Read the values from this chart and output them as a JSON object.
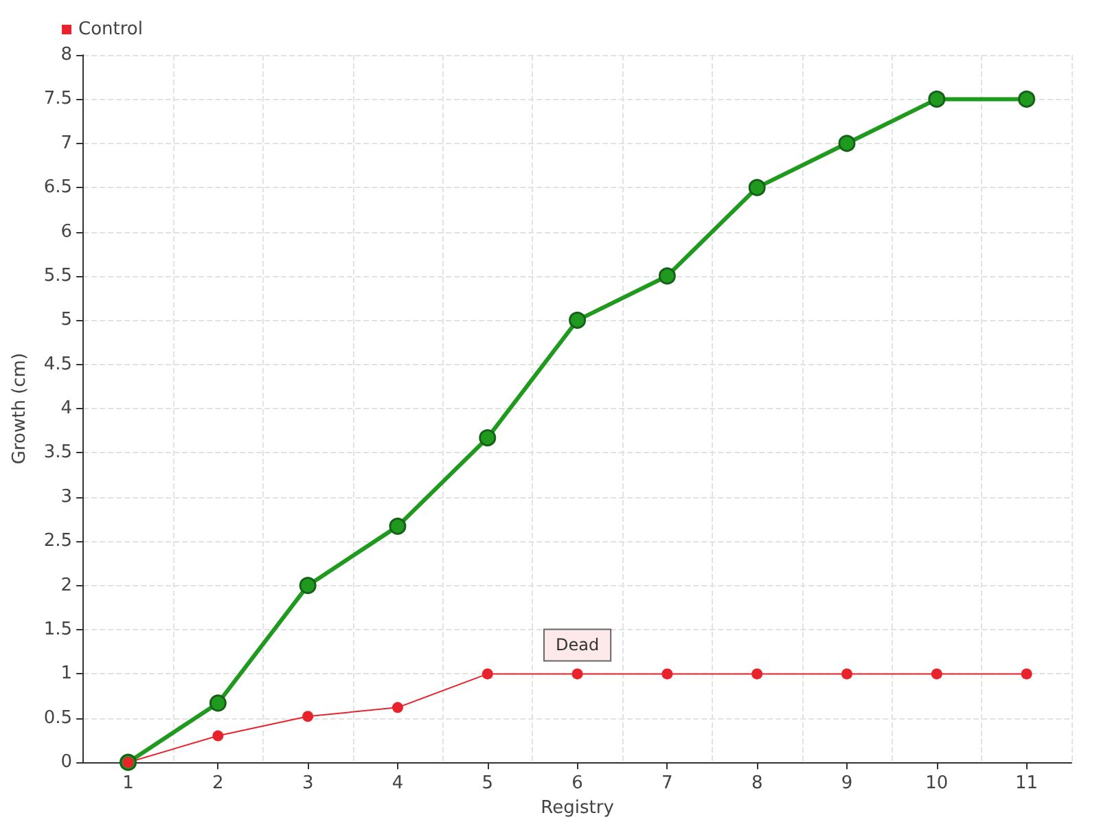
{
  "chart_data": {
    "type": "line",
    "xlabel": "Registry",
    "ylabel": "Growth (cm)",
    "categories": [
      "1",
      "2",
      "3",
      "4",
      "5",
      "6",
      "7",
      "8",
      "9",
      "10",
      "11"
    ],
    "series": [
      {
        "color": "#1f9a1f",
        "values": [
          0,
          0.67,
          2,
          2.67,
          3.67,
          5,
          5.5,
          6.5,
          7,
          7.5,
          7.5
        ]
      },
      {
        "name": "Control",
        "color": "#e8232b",
        "values": [
          0,
          0.3,
          0.52,
          0.62,
          1,
          1,
          1,
          1,
          1,
          1,
          1
        ]
      }
    ],
    "ylim": [
      0,
      8
    ],
    "yticks": [
      0,
      0.5,
      1,
      1.5,
      2,
      2.5,
      3,
      3.5,
      4,
      4.5,
      5,
      5.5,
      6,
      6.5,
      7,
      7.5,
      8
    ],
    "grid": true,
    "legend": "top left",
    "marker": "circle",
    "line_style": "solid",
    "annotations": [
      {
        "text": "Dead",
        "x": "6",
        "y": 1
      }
    ]
  }
}
